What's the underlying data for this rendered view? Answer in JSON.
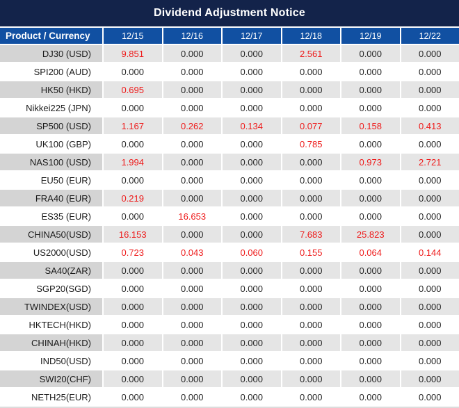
{
  "title": "Dividend Adjustment Notice",
  "table": {
    "product_header": "Product / Currency",
    "date_headers": [
      "12/15",
      "12/16",
      "12/17",
      "12/18",
      "12/19",
      "12/22"
    ],
    "rows": [
      {
        "product": "DJ30 (USD)",
        "values": [
          "9.851",
          "0.000",
          "0.000",
          "2.561",
          "0.000",
          "0.000"
        ]
      },
      {
        "product": "SPI200 (AUD)",
        "values": [
          "0.000",
          "0.000",
          "0.000",
          "0.000",
          "0.000",
          "0.000"
        ]
      },
      {
        "product": "HK50 (HKD)",
        "values": [
          "0.695",
          "0.000",
          "0.000",
          "0.000",
          "0.000",
          "0.000"
        ]
      },
      {
        "product": "Nikkei225 (JPN)",
        "values": [
          "0.000",
          "0.000",
          "0.000",
          "0.000",
          "0.000",
          "0.000"
        ]
      },
      {
        "product": "SP500 (USD)",
        "values": [
          "1.167",
          "0.262",
          "0.134",
          "0.077",
          "0.158",
          "0.413"
        ]
      },
      {
        "product": "UK100 (GBP)",
        "values": [
          "0.000",
          "0.000",
          "0.000",
          "0.785",
          "0.000",
          "0.000"
        ]
      },
      {
        "product": "NAS100 (USD)",
        "values": [
          "1.994",
          "0.000",
          "0.000",
          "0.000",
          "0.973",
          "2.721"
        ]
      },
      {
        "product": "EU50 (EUR)",
        "values": [
          "0.000",
          "0.000",
          "0.000",
          "0.000",
          "0.000",
          "0.000"
        ]
      },
      {
        "product": "FRA40 (EUR)",
        "values": [
          "0.219",
          "0.000",
          "0.000",
          "0.000",
          "0.000",
          "0.000"
        ]
      },
      {
        "product": "ES35 (EUR)",
        "values": [
          "0.000",
          "16.653",
          "0.000",
          "0.000",
          "0.000",
          "0.000"
        ]
      },
      {
        "product": "CHINA50(USD)",
        "values": [
          "16.153",
          "0.000",
          "0.000",
          "7.683",
          "25.823",
          "0.000"
        ]
      },
      {
        "product": "US2000(USD)",
        "values": [
          "0.723",
          "0.043",
          "0.060",
          "0.155",
          "0.064",
          "0.144"
        ]
      },
      {
        "product": "SA40(ZAR)",
        "values": [
          "0.000",
          "0.000",
          "0.000",
          "0.000",
          "0.000",
          "0.000"
        ]
      },
      {
        "product": "SGP20(SGD)",
        "values": [
          "0.000",
          "0.000",
          "0.000",
          "0.000",
          "0.000",
          "0.000"
        ]
      },
      {
        "product": "TWINDEX(USD)",
        "values": [
          "0.000",
          "0.000",
          "0.000",
          "0.000",
          "0.000",
          "0.000"
        ]
      },
      {
        "product": "HKTECH(HKD)",
        "values": [
          "0.000",
          "0.000",
          "0.000",
          "0.000",
          "0.000",
          "0.000"
        ]
      },
      {
        "product": "CHINAH(HKD)",
        "values": [
          "0.000",
          "0.000",
          "0.000",
          "0.000",
          "0.000",
          "0.000"
        ]
      },
      {
        "product": "IND50(USD)",
        "values": [
          "0.000",
          "0.000",
          "0.000",
          "0.000",
          "0.000",
          "0.000"
        ]
      },
      {
        "product": "SWI20(CHF)",
        "values": [
          "0.000",
          "0.000",
          "0.000",
          "0.000",
          "0.000",
          "0.000"
        ]
      },
      {
        "product": "NETH25(EUR)",
        "values": [
          "0.000",
          "0.000",
          "0.000",
          "0.000",
          "0.000",
          "0.000"
        ]
      }
    ]
  },
  "colors": {
    "title_bar_bg": "#13234a",
    "header_bg": "#1150a2",
    "header_text": "#ffffff",
    "stripe_product_bg": "#d4d4d4",
    "stripe_value_bg": "#e5e5e5",
    "white_row_bg": "#ffffff",
    "product_text": "#1a1a1a",
    "zero_text": "#262626",
    "dividend_text": "#ee1a1a"
  }
}
